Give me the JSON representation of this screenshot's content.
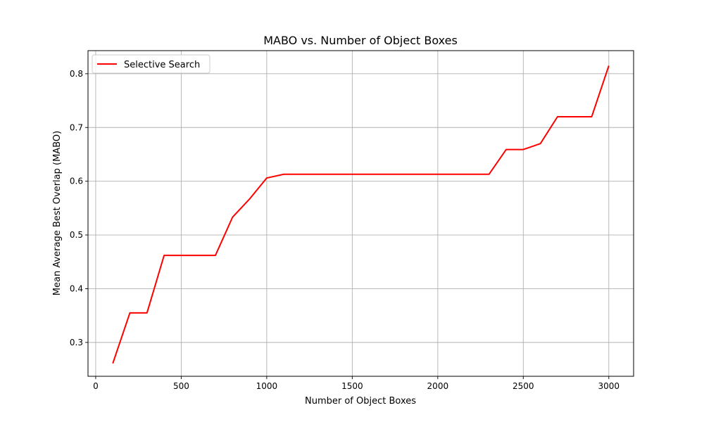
{
  "chart_data": {
    "type": "line",
    "title": "MABO vs. Number of Object Boxes",
    "xlabel": "Number of Object Boxes",
    "ylabel": "Mean Average Best Overlap (MABO)",
    "xlim": [
      -45,
      3145
    ],
    "ylim": [
      0.237,
      0.843
    ],
    "xticks": [
      0,
      500,
      1000,
      1500,
      2000,
      2500,
      3000
    ],
    "yticks": [
      0.3,
      0.4,
      0.5,
      0.6,
      0.7,
      0.8
    ],
    "grid": true,
    "legend_position": "upper-left",
    "series": [
      {
        "name": "Selective Search",
        "color": "#ff0000",
        "x": [
          100,
          200,
          300,
          400,
          500,
          600,
          700,
          800,
          900,
          1000,
          1100,
          1200,
          1300,
          1400,
          1500,
          1600,
          1700,
          1800,
          1900,
          2000,
          2100,
          2200,
          2300,
          2400,
          2500,
          2600,
          2700,
          2800,
          2900,
          3000
        ],
        "y": [
          0.261,
          0.355,
          0.355,
          0.462,
          0.462,
          0.462,
          0.462,
          0.533,
          0.567,
          0.606,
          0.613,
          0.613,
          0.613,
          0.613,
          0.613,
          0.613,
          0.613,
          0.613,
          0.613,
          0.613,
          0.613,
          0.613,
          0.613,
          0.659,
          0.659,
          0.67,
          0.72,
          0.72,
          0.72,
          0.815
        ]
      }
    ]
  }
}
